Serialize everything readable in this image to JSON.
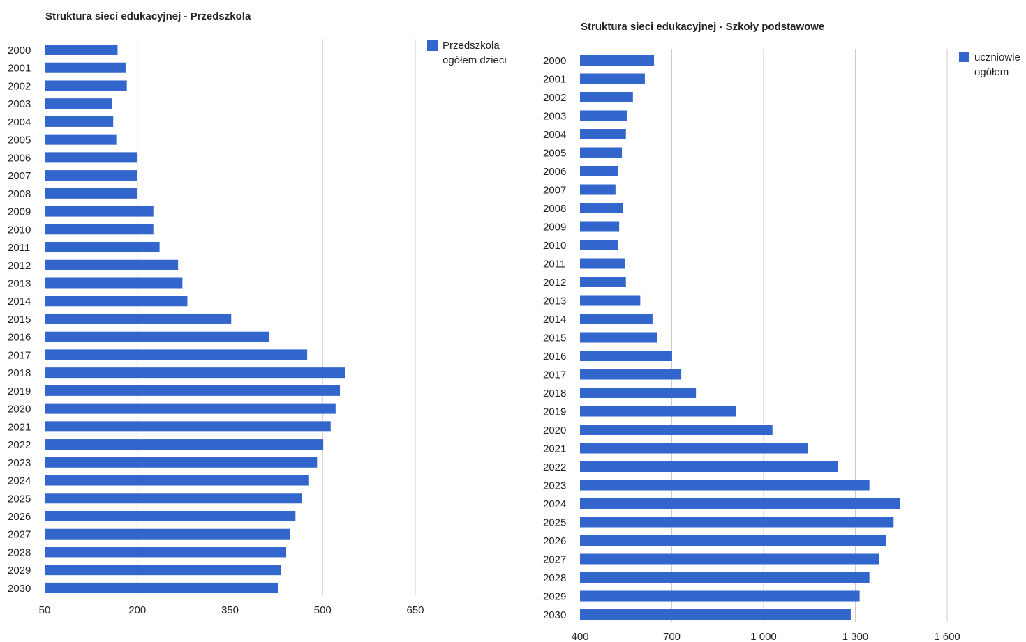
{
  "chart_data": [
    {
      "type": "bar",
      "orientation": "horizontal",
      "title": "Struktura sieci edukacyjnej - Przedszkola",
      "categories": [
        "2000",
        "2001",
        "2002",
        "2003",
        "2004",
        "2005",
        "2006",
        "2007",
        "2008",
        "2009",
        "2010",
        "2011",
        "2012",
        "2013",
        "2014",
        "2015",
        "2016",
        "2017",
        "2018",
        "2019",
        "2020",
        "2021",
        "2022",
        "2023",
        "2024",
        "2025",
        "2026",
        "2027",
        "2028",
        "2029",
        "2030"
      ],
      "series": [
        {
          "name": "Przedszkola ogółem dzieci",
          "legend_lines": [
            "Przedszkola",
            "ogółem dzieci"
          ],
          "color": "#3366cc",
          "values": [
            168,
            181,
            183,
            159,
            161,
            166,
            200,
            200,
            200,
            226,
            226,
            236,
            266,
            273,
            281,
            352,
            413,
            475,
            537,
            528,
            521,
            513,
            501,
            491,
            478,
            467,
            456,
            447,
            441,
            433,
            428
          ]
        }
      ],
      "xlim": [
        50,
        650
      ],
      "xticks": [
        50,
        200,
        350,
        500,
        650
      ],
      "xtick_labels": [
        "50",
        "200",
        "350",
        "500",
        "650"
      ],
      "grid": true,
      "legend_position": "top-right"
    },
    {
      "type": "bar",
      "orientation": "horizontal",
      "title": "Struktura sieci edukacyjnej - Szkoły podstawowe",
      "categories": [
        "2000",
        "2001",
        "2002",
        "2003",
        "2004",
        "2005",
        "2006",
        "2007",
        "2008",
        "2009",
        "2010",
        "2011",
        "2012",
        "2013",
        "2014",
        "2015",
        "2016",
        "2017",
        "2018",
        "2019",
        "2020",
        "2021",
        "2022",
        "2023",
        "2024",
        "2025",
        "2026",
        "2027",
        "2028",
        "2029",
        "2030"
      ],
      "series": [
        {
          "name": "uczniowie ogółem",
          "legend_lines": [
            "uczniowie",
            "ogółem"
          ],
          "color": "#3366cc",
          "values": [
            642,
            612,
            573,
            554,
            550,
            537,
            525,
            516,
            541,
            528,
            525,
            546,
            550,
            597,
            637,
            653,
            701,
            731,
            779,
            911,
            1029,
            1144,
            1242,
            1346,
            1447,
            1425,
            1400,
            1378,
            1346,
            1314,
            1285
          ]
        }
      ],
      "xlim": [
        400,
        1600
      ],
      "xticks": [
        400,
        700,
        1000,
        1300,
        1600
      ],
      "xtick_labels": [
        "400",
        "700",
        "1 000",
        "1 300",
        "1 600"
      ],
      "grid": true,
      "legend_position": "top-right"
    }
  ]
}
